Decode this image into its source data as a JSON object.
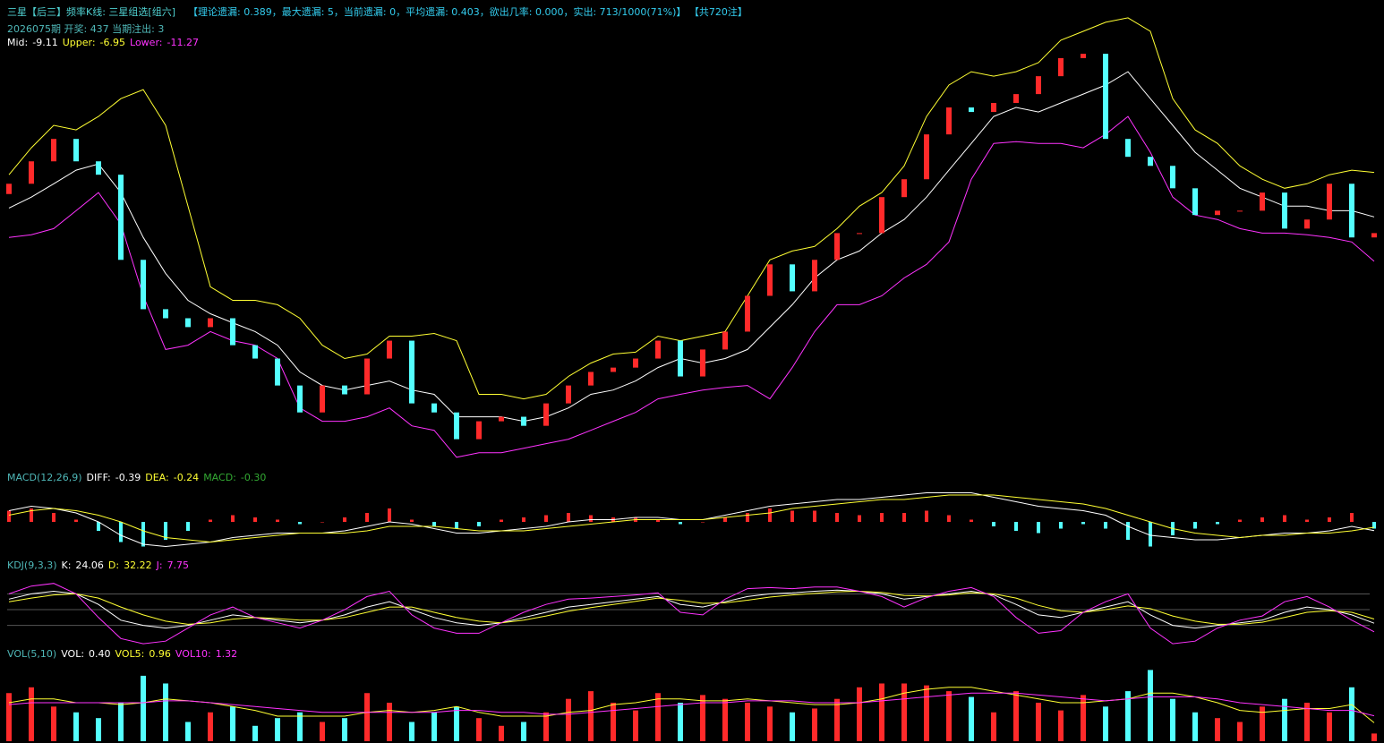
{
  "header": {
    "title": "三星【后三】频率K线: 三星组选[组六]",
    "stats": "【理论遗漏: 0.389，最大遗漏: 5，当前遗漏: 0，平均遗漏: 0.403，欲出几率: 0.000，实出: 713/1000(71%)】 【共720注】",
    "issue": "2026075期 开奖: 437 当期注出: 3"
  },
  "chart_data": [
    {
      "type": "candlestick",
      "ylim": [
        -21.2,
        1.0
      ],
      "up_color": "#ff2a2a",
      "down_color": "#54ffff",
      "open": [
        -8.0,
        -7.5,
        -6.41,
        -5.32,
        -6.41,
        -7.06,
        -11.2,
        -13.6,
        -14.04,
        -14.47,
        -14.04,
        -15.35,
        -16.0,
        -17.31,
        -18.62,
        -17.31,
        -17.74,
        -16.0,
        -15.13,
        -18.18,
        -18.62,
        -19.92,
        -19.05,
        -18.83,
        -19.27,
        -18.18,
        -17.31,
        -16.65,
        -16.44,
        -16.0,
        -15.13,
        -16.87,
        -15.56,
        -14.69,
        -12.95,
        -11.42,
        -12.73,
        -11.2,
        -9.9,
        -9.9,
        -8.15,
        -7.28,
        -5.1,
        -3.79,
        -4.01,
        -3.57,
        -3.14,
        -2.27,
        -1.39,
        -1.18,
        -5.32,
        -6.19,
        -6.63,
        -7.72,
        -9.02,
        -8.81,
        -8.81,
        -7.93,
        -9.68,
        -9.24,
        -7.5,
        -10.11
      ],
      "close": [
        -7.5,
        -6.41,
        -5.32,
        -6.41,
        -7.06,
        -11.2,
        -13.6,
        -14.04,
        -14.47,
        -14.04,
        -15.35,
        -16.0,
        -17.31,
        -18.62,
        -17.31,
        -17.74,
        -16.0,
        -15.13,
        -18.18,
        -18.62,
        -19.92,
        -19.05,
        -18.83,
        -19.27,
        -18.18,
        -17.31,
        -16.65,
        -16.44,
        -16.0,
        -15.13,
        -16.87,
        -15.56,
        -14.69,
        -12.95,
        -11.42,
        -12.73,
        -11.2,
        -9.9,
        -9.9,
        -8.15,
        -7.28,
        -5.1,
        -3.79,
        -4.01,
        -3.57,
        -3.14,
        -2.27,
        -1.39,
        -1.18,
        -5.32,
        -6.19,
        -6.63,
        -7.72,
        -9.02,
        -8.81,
        -8.81,
        -7.93,
        -9.68,
        -9.24,
        -7.5,
        -10.11,
        -9.9
      ],
      "series": [
        {
          "name": "Mid:",
          "color": "#ffffff",
          "values": [
            -8.68,
            -8.15,
            -7.5,
            -6.84,
            -6.54,
            -7.93,
            -10.11,
            -11.86,
            -13.17,
            -13.82,
            -14.26,
            -14.69,
            -15.35,
            -16.65,
            -17.31,
            -17.53,
            -17.31,
            -17.09,
            -17.53,
            -17.74,
            -18.83,
            -18.83,
            -18.83,
            -19.05,
            -18.83,
            -18.4,
            -17.74,
            -17.53,
            -17.09,
            -16.44,
            -16.0,
            -16.22,
            -16.0,
            -15.56,
            -14.47,
            -13.38,
            -12.08,
            -11.2,
            -10.77,
            -9.9,
            -9.24,
            -8.15,
            -6.84,
            -5.54,
            -4.23,
            -3.79,
            -4.01,
            -3.57,
            -3.14,
            -2.7,
            -2.05,
            -3.36,
            -4.66,
            -5.97,
            -6.84,
            -7.72,
            -8.15,
            -8.59,
            -8.59,
            -8.81,
            -8.81,
            -9.11
          ]
        },
        {
          "name": "Upper:",
          "color": "#ffff33",
          "values": [
            -7.06,
            -5.75,
            -4.66,
            -4.88,
            -4.23,
            -3.36,
            -2.92,
            -4.66,
            -8.59,
            -12.51,
            -13.17,
            -13.17,
            -13.38,
            -14.04,
            -15.35,
            -16.0,
            -15.78,
            -14.91,
            -14.91,
            -14.78,
            -15.13,
            -17.74,
            -17.74,
            -17.96,
            -17.74,
            -16.87,
            -16.22,
            -15.78,
            -15.69,
            -14.91,
            -15.13,
            -14.91,
            -14.69,
            -12.95,
            -11.2,
            -10.77,
            -10.55,
            -9.68,
            -8.59,
            -7.93,
            -6.63,
            -4.23,
            -2.7,
            -2.05,
            -2.27,
            -2.05,
            -1.61,
            -0.52,
            -0.09,
            0.35,
            0.57,
            -0.09,
            -3.36,
            -4.88,
            -5.54,
            -6.63,
            -7.28,
            -7.72,
            -7.5,
            -7.06,
            -6.84,
            -6.95
          ]
        },
        {
          "name": "Lower:",
          "color": "#ff33ff",
          "values": [
            -10.11,
            -9.98,
            -9.68,
            -8.81,
            -7.93,
            -9.46,
            -12.95,
            -15.56,
            -15.35,
            -14.69,
            -15.13,
            -15.35,
            -16.0,
            -18.4,
            -19.05,
            -19.05,
            -18.83,
            -18.4,
            -19.27,
            -19.49,
            -20.8,
            -20.58,
            -20.58,
            -20.36,
            -20.14,
            -19.92,
            -19.49,
            -19.05,
            -18.62,
            -17.96,
            -17.74,
            -17.53,
            -17.4,
            -17.31,
            -17.96,
            -16.44,
            -14.69,
            -13.38,
            -13.38,
            -12.95,
            -12.08,
            -11.42,
            -10.33,
            -7.28,
            -5.54,
            -5.45,
            -5.54,
            -5.54,
            -5.75,
            -5.1,
            -4.23,
            -5.97,
            -8.15,
            -9.02,
            -9.24,
            -9.68,
            -9.9,
            -9.9,
            -9.98,
            -10.11,
            -10.33,
            -11.27
          ]
        }
      ]
    },
    {
      "type": "macd",
      "title": "MACD(12,26,9)",
      "ylim": [
        -1.4,
        1.4
      ],
      "up_color": "#ff2a2a",
      "down_color": "#54ffff",
      "histogram": {
        "name": "MACD:",
        "color": "#33aa33",
        "values": [
          0.5,
          0.6,
          0.4,
          0.1,
          -0.4,
          -0.9,
          -1.1,
          -0.8,
          -0.4,
          0.1,
          0.3,
          0.2,
          0.1,
          -0.1,
          0.0,
          0.2,
          0.4,
          0.6,
          0.1,
          -0.2,
          -0.3,
          -0.2,
          0.1,
          0.2,
          0.3,
          0.4,
          0.3,
          0.2,
          0.2,
          0.1,
          -0.1,
          0.0,
          0.2,
          0.4,
          0.6,
          0.5,
          0.5,
          0.4,
          0.3,
          0.4,
          0.4,
          0.5,
          0.3,
          0.1,
          -0.2,
          -0.4,
          -0.5,
          -0.3,
          -0.1,
          -0.3,
          -0.8,
          -1.1,
          -0.6,
          -0.3,
          -0.1,
          0.1,
          0.2,
          0.3,
          0.1,
          0.2,
          0.4,
          -0.3
        ],
        "value_labels": [
          null,
          null,
          null,
          null,
          null,
          null,
          null,
          null,
          null,
          null,
          null,
          null,
          null,
          null,
          null,
          null,
          null,
          null,
          null,
          null,
          null,
          null,
          null,
          null,
          null,
          null,
          null,
          null,
          null,
          null,
          null,
          null,
          null,
          null,
          null,
          null,
          null,
          null,
          null,
          null,
          null,
          null,
          null,
          null,
          null,
          null,
          null,
          null,
          null,
          null,
          null,
          null,
          null,
          null,
          null,
          null,
          null,
          null,
          null,
          null,
          null,
          "-0.30"
        ]
      },
      "series": [
        {
          "name": "DIFF:",
          "color": "#ffffff",
          "values": [
            0.5,
            0.7,
            0.6,
            0.4,
            0.0,
            -0.6,
            -1.0,
            -1.1,
            -1.0,
            -0.9,
            -0.7,
            -0.6,
            -0.5,
            -0.5,
            -0.5,
            -0.4,
            -0.2,
            0.0,
            -0.1,
            -0.3,
            -0.5,
            -0.5,
            -0.4,
            -0.3,
            -0.2,
            0.0,
            0.1,
            0.1,
            0.2,
            0.2,
            0.1,
            0.1,
            0.3,
            0.5,
            0.7,
            0.8,
            0.9,
            1.0,
            1.0,
            1.1,
            1.2,
            1.3,
            1.3,
            1.3,
            1.1,
            0.9,
            0.7,
            0.6,
            0.5,
            0.3,
            -0.2,
            -0.6,
            -0.7,
            -0.8,
            -0.8,
            -0.7,
            -0.6,
            -0.5,
            -0.5,
            -0.4,
            -0.2,
            -0.39
          ]
        },
        {
          "name": "DEA:",
          "color": "#ffff33",
          "values": [
            0.3,
            0.5,
            0.6,
            0.5,
            0.3,
            0.0,
            -0.4,
            -0.7,
            -0.8,
            -0.9,
            -0.8,
            -0.7,
            -0.6,
            -0.5,
            -0.5,
            -0.5,
            -0.4,
            -0.2,
            -0.2,
            -0.2,
            -0.3,
            -0.4,
            -0.4,
            -0.4,
            -0.3,
            -0.2,
            -0.1,
            0.0,
            0.1,
            0.1,
            0.1,
            0.1,
            0.2,
            0.3,
            0.4,
            0.6,
            0.7,
            0.8,
            0.9,
            1.0,
            1.0,
            1.1,
            1.2,
            1.2,
            1.2,
            1.1,
            1.0,
            0.9,
            0.8,
            0.6,
            0.3,
            0.0,
            -0.3,
            -0.5,
            -0.6,
            -0.7,
            -0.6,
            -0.6,
            -0.5,
            -0.5,
            -0.4,
            -0.24
          ]
        }
      ]
    },
    {
      "type": "kdj",
      "title": "KDJ(9,3,3)",
      "ylim": [
        -25,
        120
      ],
      "hlines": [
        20,
        50,
        80
      ],
      "series": [
        {
          "name": "K:",
          "color": "#ffffff",
          "values": [
            70,
            80,
            85,
            80,
            60,
            30,
            20,
            15,
            20,
            30,
            40,
            35,
            30,
            25,
            30,
            40,
            55,
            65,
            50,
            35,
            25,
            20,
            25,
            35,
            45,
            55,
            60,
            65,
            70,
            75,
            60,
            55,
            65,
            75,
            80,
            82,
            85,
            87,
            85,
            80,
            70,
            75,
            80,
            85,
            78,
            60,
            40,
            35,
            45,
            55,
            65,
            40,
            20,
            15,
            20,
            25,
            30,
            45,
            55,
            50,
            40,
            24.06
          ]
        },
        {
          "name": "D:",
          "color": "#ffff33",
          "values": [
            65,
            72,
            78,
            80,
            72,
            55,
            40,
            28,
            22,
            25,
            32,
            35,
            33,
            30,
            30,
            35,
            45,
            55,
            55,
            45,
            35,
            28,
            25,
            30,
            38,
            47,
            54,
            60,
            66,
            72,
            68,
            62,
            63,
            68,
            74,
            78,
            81,
            84,
            85,
            83,
            77,
            76,
            78,
            82,
            80,
            72,
            58,
            48,
            45,
            50,
            57,
            52,
            38,
            28,
            22,
            22,
            26,
            35,
            45,
            48,
            45,
            32.22
          ]
        },
        {
          "name": "J:",
          "color": "#ff33ff",
          "values": [
            80,
            95,
            100,
            80,
            35,
            -5,
            -15,
            -10,
            15,
            40,
            55,
            35,
            25,
            15,
            30,
            50,
            75,
            85,
            40,
            15,
            5,
            5,
            25,
            45,
            60,
            70,
            72,
            75,
            78,
            82,
            45,
            40,
            70,
            90,
            92,
            90,
            93,
            93,
            85,
            75,
            55,
            73,
            85,
            92,
            75,
            35,
            5,
            10,
            45,
            65,
            80,
            15,
            -15,
            -10,
            15,
            30,
            38,
            65,
            75,
            55,
            30,
            7.75
          ]
        }
      ]
    },
    {
      "type": "volume",
      "title": "VOL(5,10)",
      "ylim": [
        0,
        4
      ],
      "bars": {
        "name": "VOL:",
        "color": "#ffffff",
        "values": [
          2.5,
          2.8,
          1.8,
          1.5,
          1.2,
          2.0,
          3.4,
          3.0,
          1.0,
          1.5,
          1.8,
          0.8,
          1.2,
          1.5,
          1.0,
          1.2,
          2.5,
          2.0,
          1.0,
          1.5,
          1.8,
          1.2,
          0.8,
          1.0,
          1.5,
          2.2,
          2.6,
          2.0,
          1.6,
          2.5,
          2.0,
          2.4,
          2.2,
          2.0,
          1.8,
          1.5,
          1.7,
          2.2,
          2.8,
          3.0,
          3.0,
          2.9,
          2.6,
          2.3,
          1.5,
          2.6,
          2.0,
          1.6,
          2.4,
          1.8,
          2.6,
          3.7,
          2.2,
          1.5,
          1.2,
          1.0,
          1.8,
          2.2,
          2.0,
          1.5,
          2.8,
          0.4
        ],
        "value_labels": [
          null,
          null,
          null,
          null,
          null,
          null,
          null,
          null,
          null,
          null,
          null,
          null,
          null,
          null,
          null,
          null,
          null,
          null,
          null,
          null,
          null,
          null,
          null,
          null,
          null,
          null,
          null,
          null,
          null,
          null,
          null,
          null,
          null,
          null,
          null,
          null,
          null,
          null,
          null,
          null,
          null,
          null,
          null,
          null,
          null,
          null,
          null,
          null,
          null,
          null,
          null,
          null,
          null,
          null,
          null,
          null,
          null,
          null,
          null,
          null,
          null,
          "0.40"
        ]
      },
      "series": [
        {
          "name": "VOL5:",
          "color": "#ffff33",
          "values": [
            2.0,
            2.2,
            2.2,
            2.0,
            2.0,
            1.9,
            2.0,
            2.2,
            2.1,
            2.0,
            1.8,
            1.6,
            1.3,
            1.3,
            1.3,
            1.3,
            1.5,
            1.6,
            1.5,
            1.6,
            1.8,
            1.5,
            1.3,
            1.3,
            1.3,
            1.5,
            1.6,
            1.9,
            2.0,
            2.2,
            2.2,
            2.1,
            2.1,
            2.2,
            2.1,
            2.0,
            1.9,
            1.9,
            2.0,
            2.2,
            2.5,
            2.7,
            2.8,
            2.8,
            2.6,
            2.4,
            2.2,
            2.0,
            2.0,
            2.1,
            2.2,
            2.5,
            2.5,
            2.3,
            2.0,
            1.6,
            1.5,
            1.6,
            1.7,
            1.7,
            1.9,
            0.96
          ]
        },
        {
          "name": "VOL10:",
          "color": "#ff33ff",
          "values": [
            1.9,
            2.0,
            2.0,
            2.0,
            2.0,
            2.0,
            2.0,
            2.1,
            2.1,
            2.0,
            1.9,
            1.8,
            1.7,
            1.6,
            1.5,
            1.5,
            1.5,
            1.5,
            1.5,
            1.5,
            1.6,
            1.6,
            1.5,
            1.5,
            1.4,
            1.4,
            1.5,
            1.6,
            1.7,
            1.8,
            1.9,
            2.0,
            2.0,
            2.1,
            2.1,
            2.1,
            2.0,
            2.0,
            2.0,
            2.1,
            2.2,
            2.3,
            2.4,
            2.5,
            2.5,
            2.5,
            2.4,
            2.3,
            2.2,
            2.1,
            2.2,
            2.3,
            2.3,
            2.3,
            2.2,
            2.0,
            1.9,
            1.8,
            1.7,
            1.6,
            1.6,
            1.32
          ]
        }
      ]
    }
  ]
}
